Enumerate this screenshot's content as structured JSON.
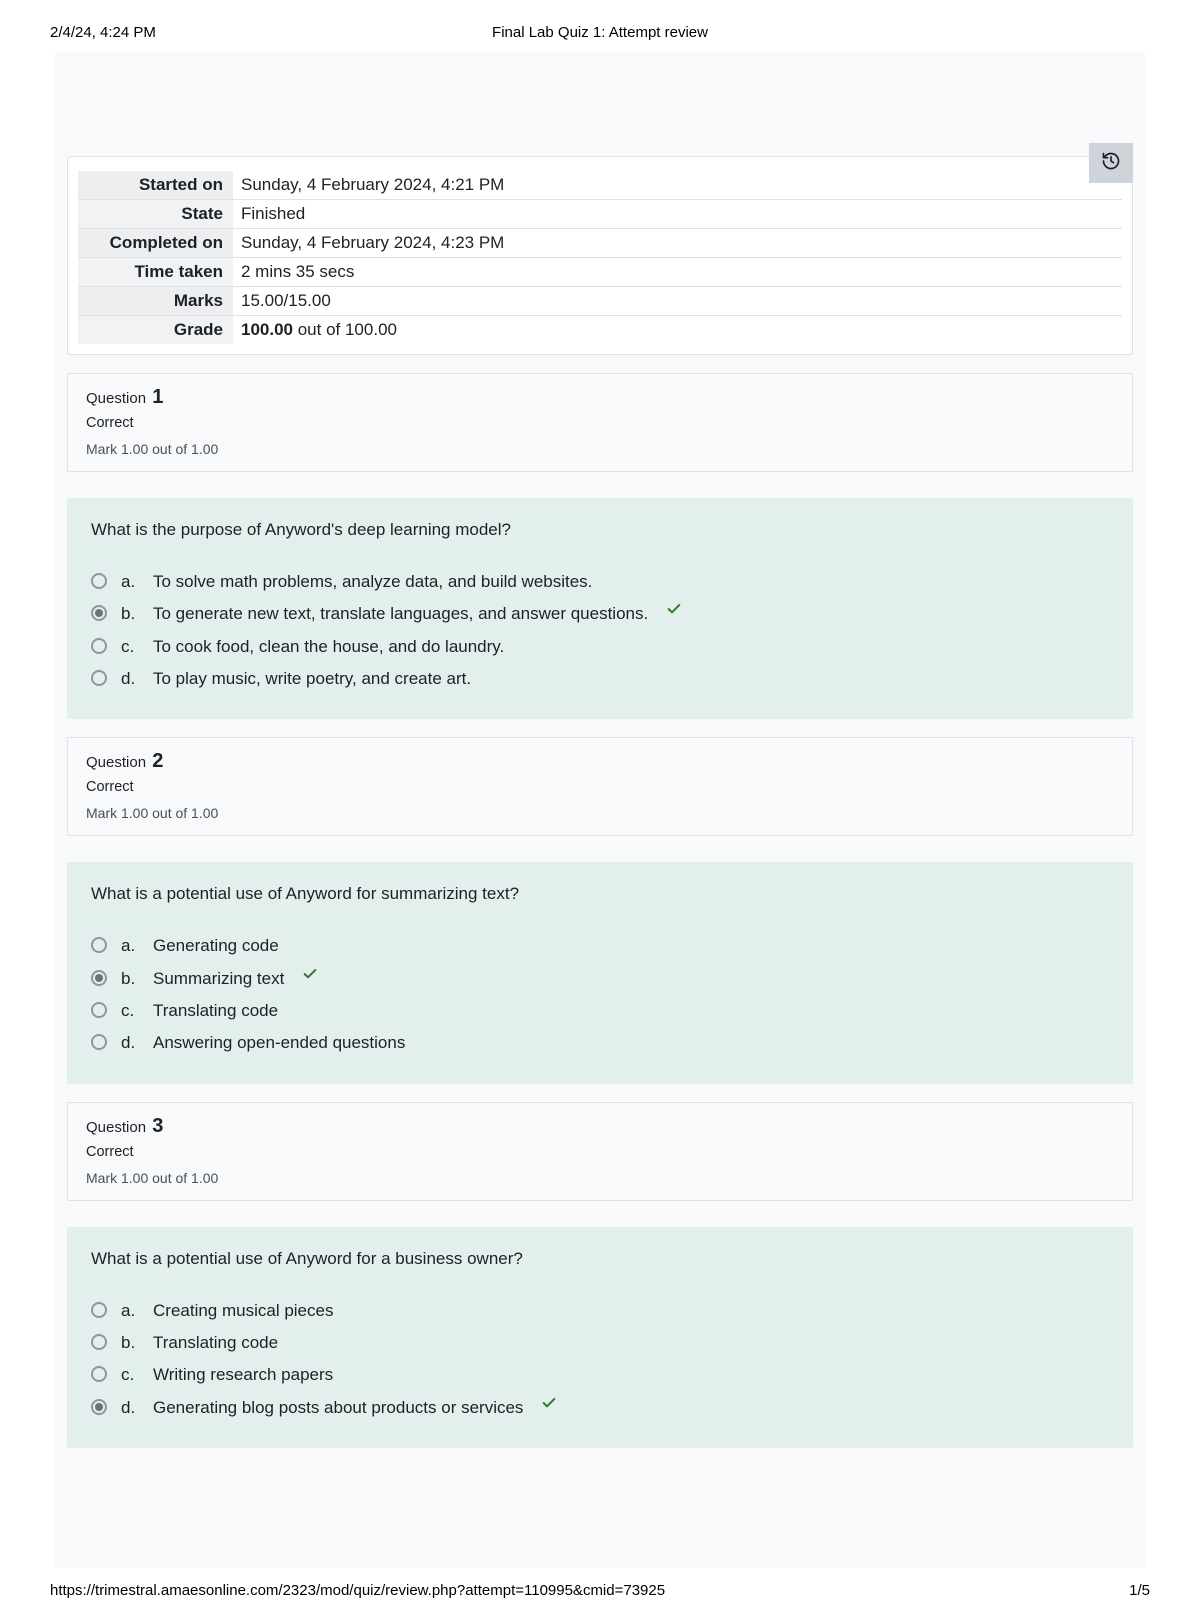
{
  "header": {
    "datetime": "2/4/24, 4:24 PM",
    "title": "Final Lab Quiz 1: Attempt review"
  },
  "footer": {
    "url": "https://trimestral.amaesonline.com/2323/mod/quiz/review.php?attempt=110995&cmid=73925",
    "page": "1/5"
  },
  "colors": {
    "page_bg": "#f8f9fa",
    "card_bg": "#ffffff",
    "border": "#dee2e6",
    "question_body_bg": "#e3efed",
    "history_btn_bg": "#ced4da",
    "correct_green": "#357a32"
  },
  "summary": [
    {
      "label": "Started on",
      "value": "Sunday, 4 February 2024, 4:21 PM"
    },
    {
      "label": "State",
      "value": "Finished"
    },
    {
      "label": "Completed on",
      "value": "Sunday, 4 February 2024, 4:23 PM"
    },
    {
      "label": "Time taken",
      "value": "2 mins 35 secs"
    },
    {
      "label": "Marks",
      "value": "15.00/15.00"
    },
    {
      "label": "Grade",
      "value_bold": "100.00",
      "value_rest": " out of 100.00"
    }
  ],
  "questions": [
    {
      "number": "1",
      "status": "Correct",
      "mark": "Mark 1.00 out of 1.00",
      "text": "What is the purpose of Anyword's deep learning model?",
      "options": [
        {
          "letter": "a.",
          "text": "To solve math problems, analyze data, and build websites.",
          "selected": false,
          "correct": false
        },
        {
          "letter": "b.",
          "text": "To generate new text, translate languages, and answer questions.",
          "selected": true,
          "correct": true
        },
        {
          "letter": "c.",
          "text": "To cook food, clean the house, and do laundry.",
          "selected": false,
          "correct": false
        },
        {
          "letter": "d.",
          "text": "To play music, write poetry, and create art.",
          "selected": false,
          "correct": false
        }
      ]
    },
    {
      "number": "2",
      "status": "Correct",
      "mark": "Mark 1.00 out of 1.00",
      "text": "What is a potential use of Anyword for summarizing text?",
      "options": [
        {
          "letter": "a.",
          "text": "Generating code",
          "selected": false,
          "correct": false
        },
        {
          "letter": "b.",
          "text": "Summarizing text",
          "selected": true,
          "correct": true
        },
        {
          "letter": "c.",
          "text": "Translating code",
          "selected": false,
          "correct": false
        },
        {
          "letter": "d.",
          "text": "Answering open-ended questions",
          "selected": false,
          "correct": false
        }
      ]
    },
    {
      "number": "3",
      "status": "Correct",
      "mark": "Mark 1.00 out of 1.00",
      "text": "What is a potential use of Anyword for a business owner?",
      "options": [
        {
          "letter": "a.",
          "text": "Creating musical pieces",
          "selected": false,
          "correct": false
        },
        {
          "letter": "b.",
          "text": "Translating code",
          "selected": false,
          "correct": false
        },
        {
          "letter": "c.",
          "text": "Writing research papers",
          "selected": false,
          "correct": false
        },
        {
          "letter": "d.",
          "text": "Generating blog posts about products or services",
          "selected": true,
          "correct": true
        }
      ]
    }
  ],
  "labels": {
    "question_word": "Question"
  }
}
